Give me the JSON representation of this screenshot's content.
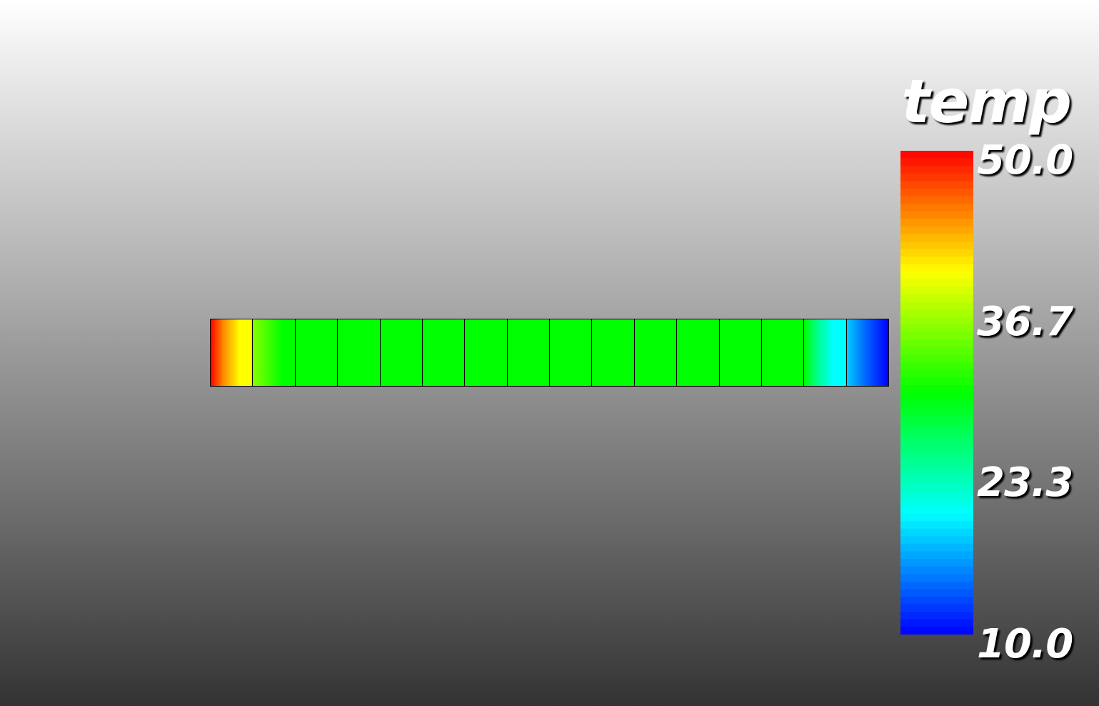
{
  "legend": {
    "title": "temp",
    "ticks": [
      "50.0",
      "36.7",
      "23.3",
      "10.0"
    ],
    "range": [
      10.0,
      50.0
    ],
    "colormap": [
      "#0000ff",
      "#00ffff",
      "#00ff00",
      "#ffff00",
      "#ff0000"
    ]
  },
  "rod": {
    "cells": 16,
    "colors": {
      "hot": "#ff0000",
      "warm": "#ffff00",
      "mid": "#00ff00",
      "cool": "#00ffff",
      "cold": "#0000ff"
    }
  }
}
